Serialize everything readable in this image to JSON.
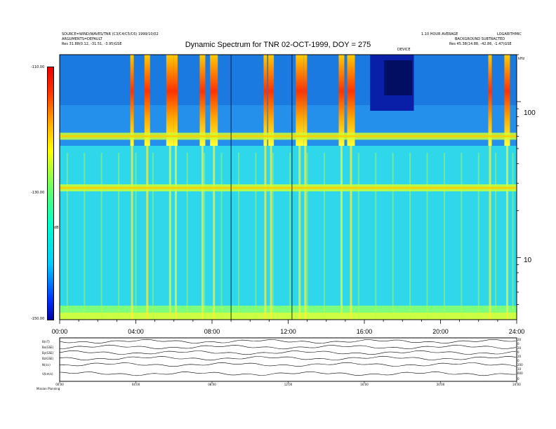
{
  "header": {
    "top_left_1": "SOURCE=WIND/WAVES/TNR (C3/C4/C5/C6) 1999/10/02",
    "top_left_2": "ARGUMENTS=DEFAULT",
    "top_left_3": "Res    31.88(0.12, -31.51, -3.95)GSE",
    "top_right_1": "1.10 HOUR AVERAGE",
    "top_right_2": "BACKGROUND SUBTRACTED",
    "top_right_3": "Res    45.38(14.88, -42.86, -1.47)GSE",
    "top_right_4": "LOGARITHMIC",
    "center_small": "DEVICE"
  },
  "chart_data": {
    "type": "heatmap",
    "title": "Dynamic Spectrum for TNR 02-OCT-1999, DOY = 275",
    "x_ticks": [
      "00:00",
      "04:00",
      "08:00",
      "12:00",
      "16:00",
      "20:00",
      "24:00"
    ],
    "xlim": [
      0,
      24
    ],
    "y_ticks": [
      {
        "label": "100",
        "value": 100
      },
      {
        "label": "10",
        "value": 10
      }
    ],
    "ylim": [
      4,
      200
    ],
    "y_scale": "log",
    "y_unit": "kHz",
    "colorbar": {
      "range": [
        -150,
        -110
      ],
      "tick_labels": [
        "-110.00",
        "-130.00",
        "-150.00"
      ],
      "label": "dB",
      "colors": [
        "#0000aa",
        "#0033ff",
        "#00ccff",
        "#00ffcc",
        "#66ff66",
        "#ffff00",
        "#ffaa00",
        "#ff3300",
        "#ee0000"
      ]
    },
    "background_color": "#2ed8ea",
    "red_bursts_hours": [
      3.8,
      4.6,
      5.8,
      6.1,
      7.5,
      8.1,
      10.8,
      11.1,
      12.6,
      12.9,
      14.8,
      15.3,
      22.6,
      23.5
    ],
    "dark_blue_region_hours": [
      16.3,
      18.6
    ],
    "band_frequencies_khz": [
      60,
      28
    ],
    "vertical_markers_hours": [
      9.0,
      12.2
    ]
  },
  "aux_panel": {
    "labels": [
      "B(nT)",
      "Bx(GSE)",
      "By(GSE)",
      "Bz(GSE)",
      "N(/cc)",
      "V(km/s)"
    ],
    "right_labels": [
      "20",
      "0",
      "20",
      "0",
      "20",
      "0",
      "200",
      "10",
      "600",
      "0"
    ],
    "x_ticks": [
      "00:00",
      "04:00",
      "08:00",
      "12:00",
      "16:00",
      "20:00",
      "24:00"
    ],
    "bottom_left": "Mission Planning"
  }
}
